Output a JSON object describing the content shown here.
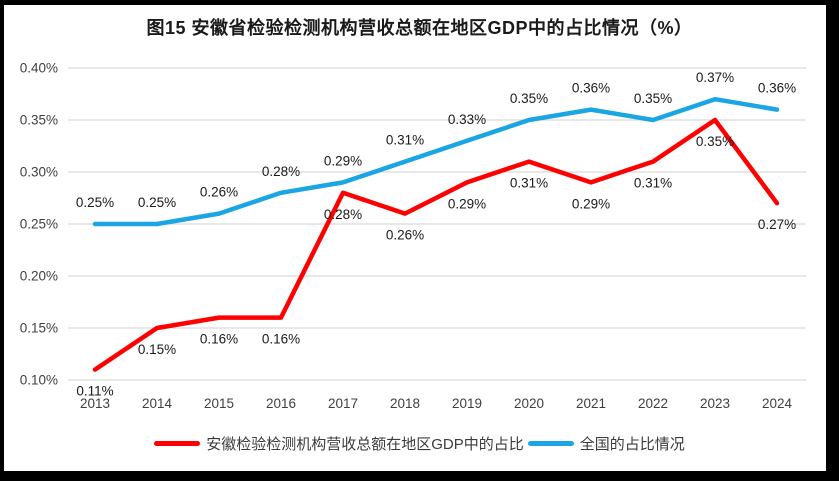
{
  "title": "图15  安徽省检验检测机构营收总额在地区GDP中的占比情况（%）",
  "colors": {
    "anhui_line": "#FE0000",
    "national_line": "#1BA6E3",
    "gridline": "#D9D9D9",
    "axis_text": "#404040",
    "data_label_text": "#1a1a1a",
    "frame_border": "#000000",
    "background": "#FFFFFF"
  },
  "legend": {
    "items": [
      {
        "label": "安徽检验检测机构营收总额在地区GDP中的占比",
        "series": 0
      },
      {
        "label": "全国的占比情况",
        "series": 1
      }
    ]
  },
  "chart_data": {
    "type": "line",
    "title": "图15  安徽省检验检测机构营收总额在地区GDP中的占比情况（%）",
    "x": [
      "2013",
      "2014",
      "2015",
      "2016",
      "2017",
      "2018",
      "2019",
      "2020",
      "2021",
      "2022",
      "2023",
      "2024"
    ],
    "series": [
      {
        "name": "安徽检验检测机构营收总额在地区GDP中的占比",
        "color": "#FE0000",
        "values": [
          0.11,
          0.15,
          0.16,
          0.16,
          0.28,
          0.26,
          0.29,
          0.31,
          0.29,
          0.31,
          0.35,
          0.27
        ],
        "point_labels": [
          "0.11%",
          "0.15%",
          "0.16%",
          "0.16%",
          "0.28%",
          "0.26%",
          "0.29%",
          "0.31%",
          "0.29%",
          "0.31%",
          "0.35%",
          "0.27%"
        ],
        "label_position": "below"
      },
      {
        "name": "全国的占比情况",
        "color": "#1BA6E3",
        "values": [
          0.25,
          0.25,
          0.26,
          0.28,
          0.29,
          0.31,
          0.33,
          0.35,
          0.36,
          0.35,
          0.37,
          0.36
        ],
        "point_labels": [
          "0.25%",
          "0.25%",
          "0.26%",
          "0.28%",
          "0.29%",
          "0.31%",
          "0.33%",
          "0.35%",
          "0.36%",
          "0.35%",
          "0.37%",
          "0.36%"
        ],
        "label_position": "above"
      }
    ],
    "xlabel": "",
    "ylabel": "",
    "ylim": [
      0.1,
      0.4
    ],
    "y_ticks": [
      {
        "value": 0.1,
        "label": "0.10%"
      },
      {
        "value": 0.15,
        "label": "0.15%"
      },
      {
        "value": 0.2,
        "label": "0.20%"
      },
      {
        "value": 0.25,
        "label": "0.25%"
      },
      {
        "value": 0.3,
        "label": "0.30%"
      },
      {
        "value": 0.35,
        "label": "0.35%"
      },
      {
        "value": 0.4,
        "label": "0.40%"
      }
    ],
    "grid": true,
    "legend_position": "bottom"
  }
}
